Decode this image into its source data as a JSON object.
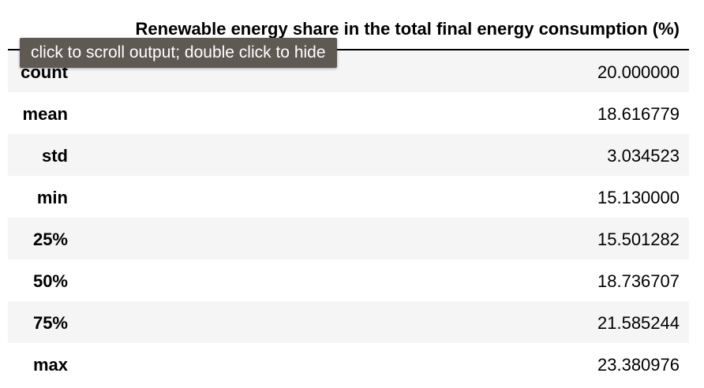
{
  "table": {
    "column_header": "Renewable energy share in the total final energy consumption (%)",
    "rows": [
      {
        "label": "count",
        "value": "20.000000"
      },
      {
        "label": "mean",
        "value": "18.616779"
      },
      {
        "label": "std",
        "value": "3.034523"
      },
      {
        "label": "min",
        "value": "15.130000"
      },
      {
        "label": "25%",
        "value": "15.501282"
      },
      {
        "label": "50%",
        "value": "18.736707"
      },
      {
        "label": "75%",
        "value": "21.585244"
      },
      {
        "label": "max",
        "value": "23.380976"
      }
    ]
  },
  "tooltip": {
    "text": "click to scroll output; double click to hide"
  },
  "colors": {
    "stripe": "#f5f5f5",
    "tooltip_bg": "#5f5954",
    "tooltip_text": "#ffffff"
  }
}
